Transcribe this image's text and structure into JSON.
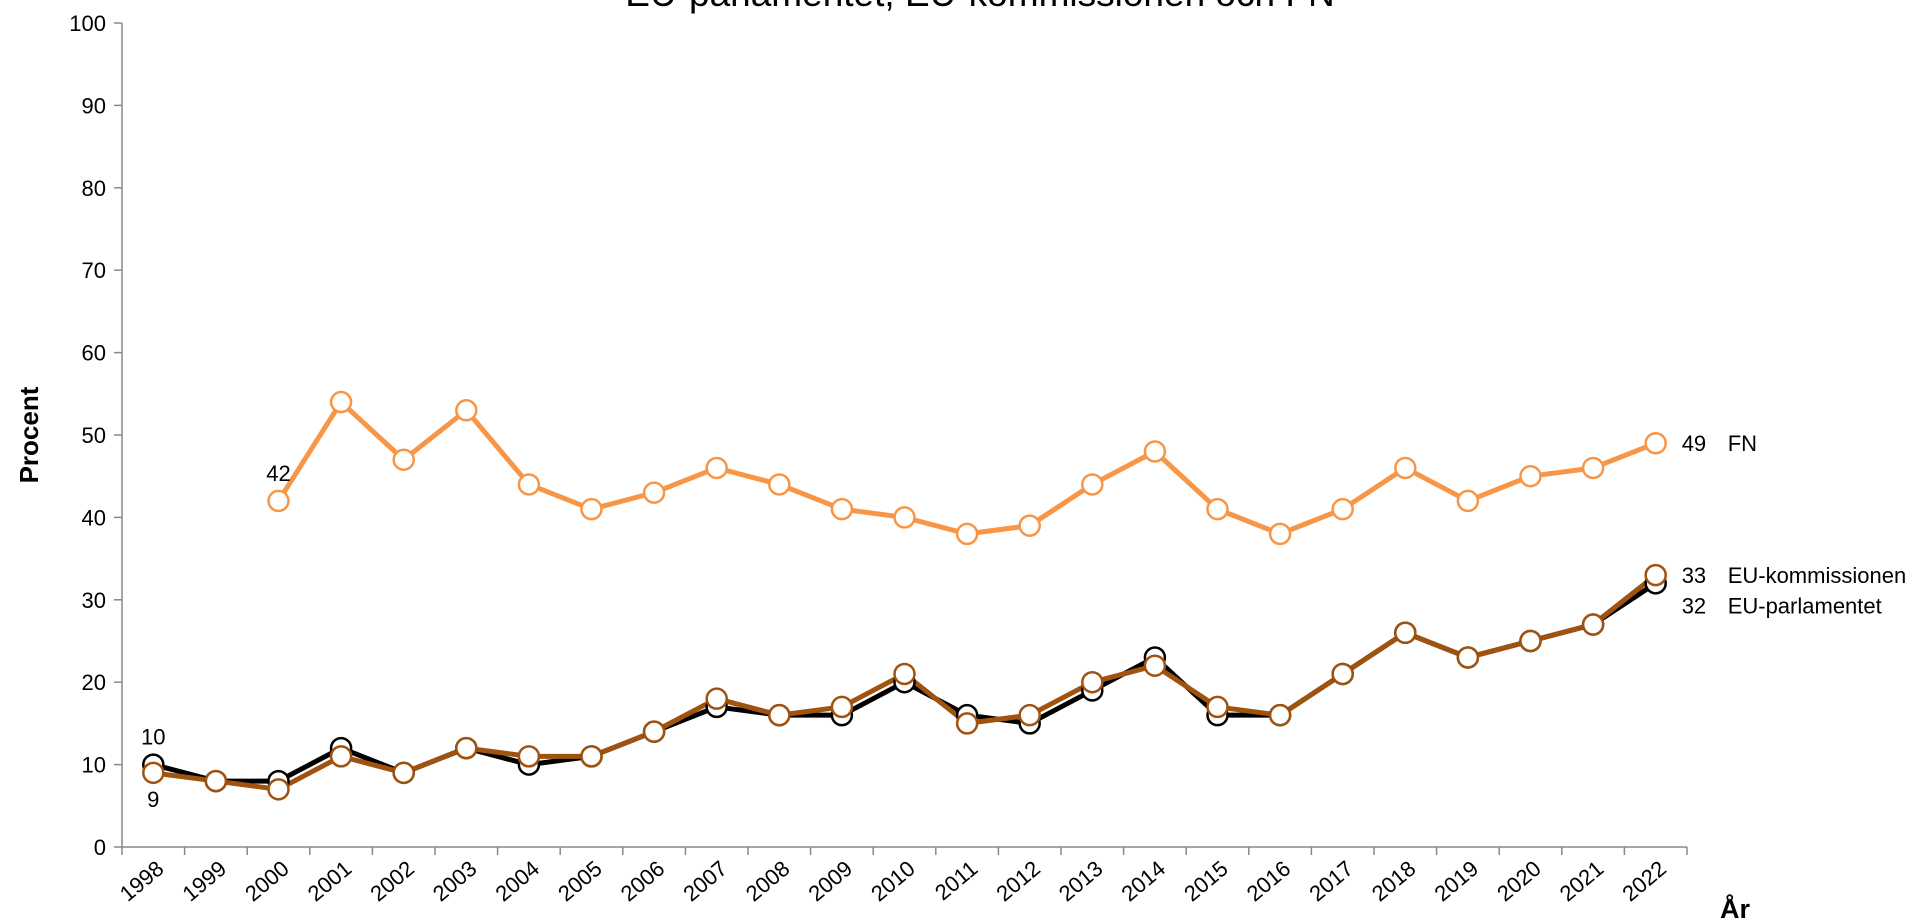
{
  "chart_data": {
    "type": "line",
    "title": "EU-parlamentet, EU-kommissionen och FN",
    "x_label": "År",
    "y_label": "Procent",
    "categories": [
      "1998",
      "1999",
      "2000",
      "2001",
      "2002",
      "2003",
      "2004",
      "2005",
      "2006",
      "2007",
      "2008",
      "2009",
      "2010",
      "2011",
      "2012",
      "2013",
      "2014",
      "2015",
      "2016",
      "2017",
      "2018",
      "2019",
      "2020",
      "2021",
      "2022"
    ],
    "series": [
      {
        "name": "EU-parlamentet",
        "color": "#000000",
        "values": [
          10,
          8,
          8,
          12,
          9,
          12,
          10,
          11,
          14,
          17,
          16,
          16,
          20,
          16,
          15,
          19,
          23,
          16,
          16,
          21,
          26,
          23,
          25,
          27,
          32
        ]
      },
      {
        "name": "EU-kommissionen",
        "color": "#a0520f",
        "values": [
          9,
          8,
          7,
          11,
          9,
          12,
          11,
          11,
          14,
          18,
          16,
          17,
          21,
          15,
          16,
          20,
          22,
          17,
          16,
          21,
          26,
          23,
          25,
          27,
          33
        ]
      },
      {
        "name": "FN",
        "color": "#f79646",
        "values": [
          null,
          null,
          42,
          54,
          47,
          53,
          44,
          41,
          43,
          46,
          44,
          41,
          40,
          38,
          39,
          44,
          48,
          41,
          38,
          41,
          46,
          42,
          45,
          46,
          49
        ]
      }
    ],
    "ylim": [
      0,
      100
    ],
    "yticks": [
      0,
      10,
      20,
      30,
      40,
      50,
      60,
      70,
      80,
      90,
      100
    ],
    "grid": false
  }
}
